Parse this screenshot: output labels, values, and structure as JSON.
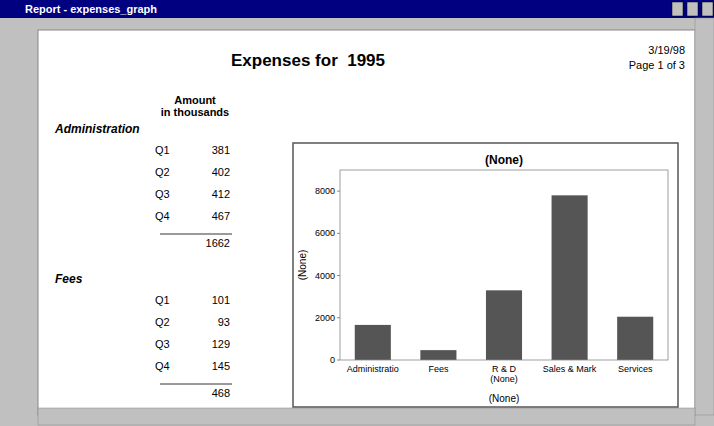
{
  "window_title": "Report - expenses_graph",
  "title": "Expenses for  1995",
  "date": "3/19/98",
  "page": "Page 1 of 3",
  "table_header": "Amount\nin thousands",
  "table": [
    {
      "category": "Administration",
      "rows": [
        {
          "label": "Q1",
          "value": 381
        },
        {
          "label": "Q2",
          "value": 402
        },
        {
          "label": "Q3",
          "value": 412
        },
        {
          "label": "Q4",
          "value": 467
        }
      ],
      "total": 1662
    },
    {
      "category": "Fees",
      "rows": [
        {
          "label": "Q1",
          "value": 101
        },
        {
          "label": "Q2",
          "value": 93
        },
        {
          "label": "Q3",
          "value": 129
        },
        {
          "label": "Q4",
          "value": 145
        }
      ],
      "total": 468
    }
  ],
  "chart_data": {
    "type": "bar",
    "title": "(None)",
    "x_label": "(None)",
    "y_label": "(None)",
    "categories": [
      "Administratio",
      "Fees",
      "R & D\n(None)",
      "Sales & Mark",
      "Services"
    ],
    "values": [
      1662,
      468,
      3300,
      7800,
      2050
    ],
    "color": "#555555",
    "ylim": [
      0,
      9000
    ],
    "yticks": [
      0,
      2000,
      4000,
      6000,
      8000
    ],
    "grid": false
  }
}
